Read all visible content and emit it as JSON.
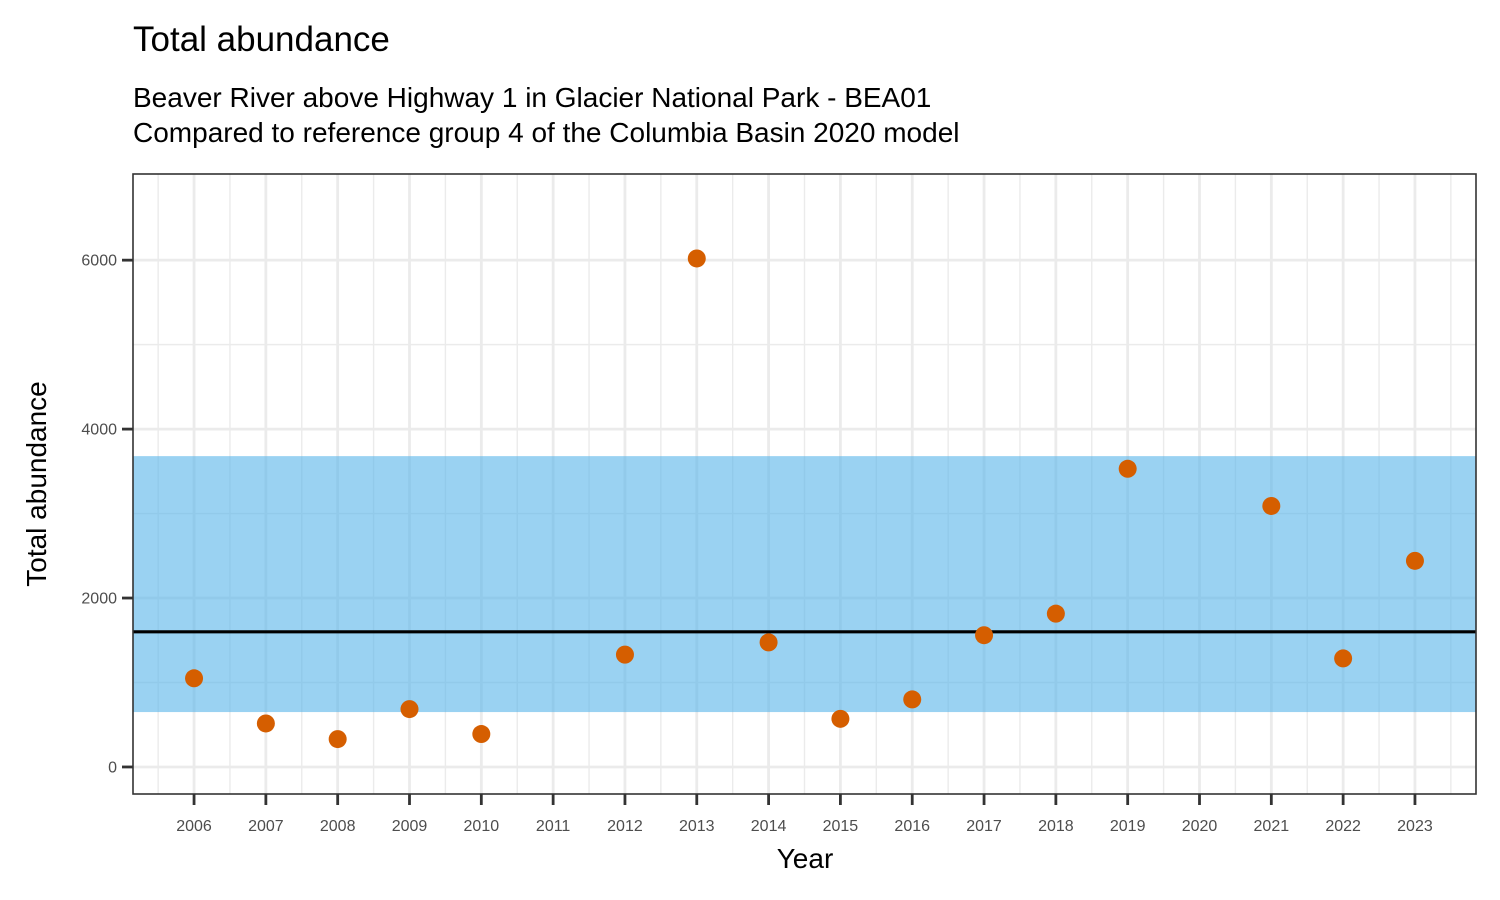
{
  "chart_data": {
    "type": "scatter",
    "title": "Total abundance",
    "subtitle_lines": [
      "Beaver River above Highway 1 in Glacier National Park - BEA01",
      "Compared to reference group 4 of the Columbia Basin 2020 model"
    ],
    "xlabel": "Year",
    "ylabel": "Total abundance",
    "xlim": [
      2005.15,
      2023.85
    ],
    "ylim": [
      -320,
      7020
    ],
    "x_ticks": [
      2006,
      2007,
      2008,
      2009,
      2010,
      2011,
      2012,
      2013,
      2014,
      2015,
      2016,
      2017,
      2018,
      2019,
      2020,
      2021,
      2022,
      2023
    ],
    "x_tick_labels": [
      "2006",
      "2007",
      "2008",
      "2009",
      "2010",
      "2011",
      "2012",
      "2013",
      "2014",
      "2015",
      "2016",
      "2017",
      "2018",
      "2019",
      "2020",
      "2021",
      "2022",
      "2023"
    ],
    "y_ticks": [
      0,
      2000,
      4000,
      6000
    ],
    "y_tick_labels": [
      "0",
      "2000",
      "4000",
      "6000"
    ],
    "y_minor_ticks": [
      1000,
      3000,
      5000
    ],
    "grid": true,
    "series": [
      {
        "name": "Total abundance",
        "color": "#D55E00",
        "points": [
          {
            "x": 2006,
            "y": 1050
          },
          {
            "x": 2007,
            "y": 515
          },
          {
            "x": 2008,
            "y": 330
          },
          {
            "x": 2009,
            "y": 685
          },
          {
            "x": 2010,
            "y": 390
          },
          {
            "x": 2012,
            "y": 1330
          },
          {
            "x": 2013,
            "y": 6020
          },
          {
            "x": 2014,
            "y": 1475
          },
          {
            "x": 2015,
            "y": 570
          },
          {
            "x": 2016,
            "y": 800
          },
          {
            "x": 2017,
            "y": 1560
          },
          {
            "x": 2018,
            "y": 1815
          },
          {
            "x": 2019,
            "y": 3530
          },
          {
            "x": 2021,
            "y": 3090
          },
          {
            "x": 2022,
            "y": 1285
          },
          {
            "x": 2023,
            "y": 2440
          }
        ]
      }
    ],
    "reference_band": {
      "lower": 650,
      "upper": 3680,
      "color": "#56B4E9",
      "opacity": 0.6
    },
    "reference_line": {
      "y": 1600,
      "color": "#000000"
    }
  }
}
